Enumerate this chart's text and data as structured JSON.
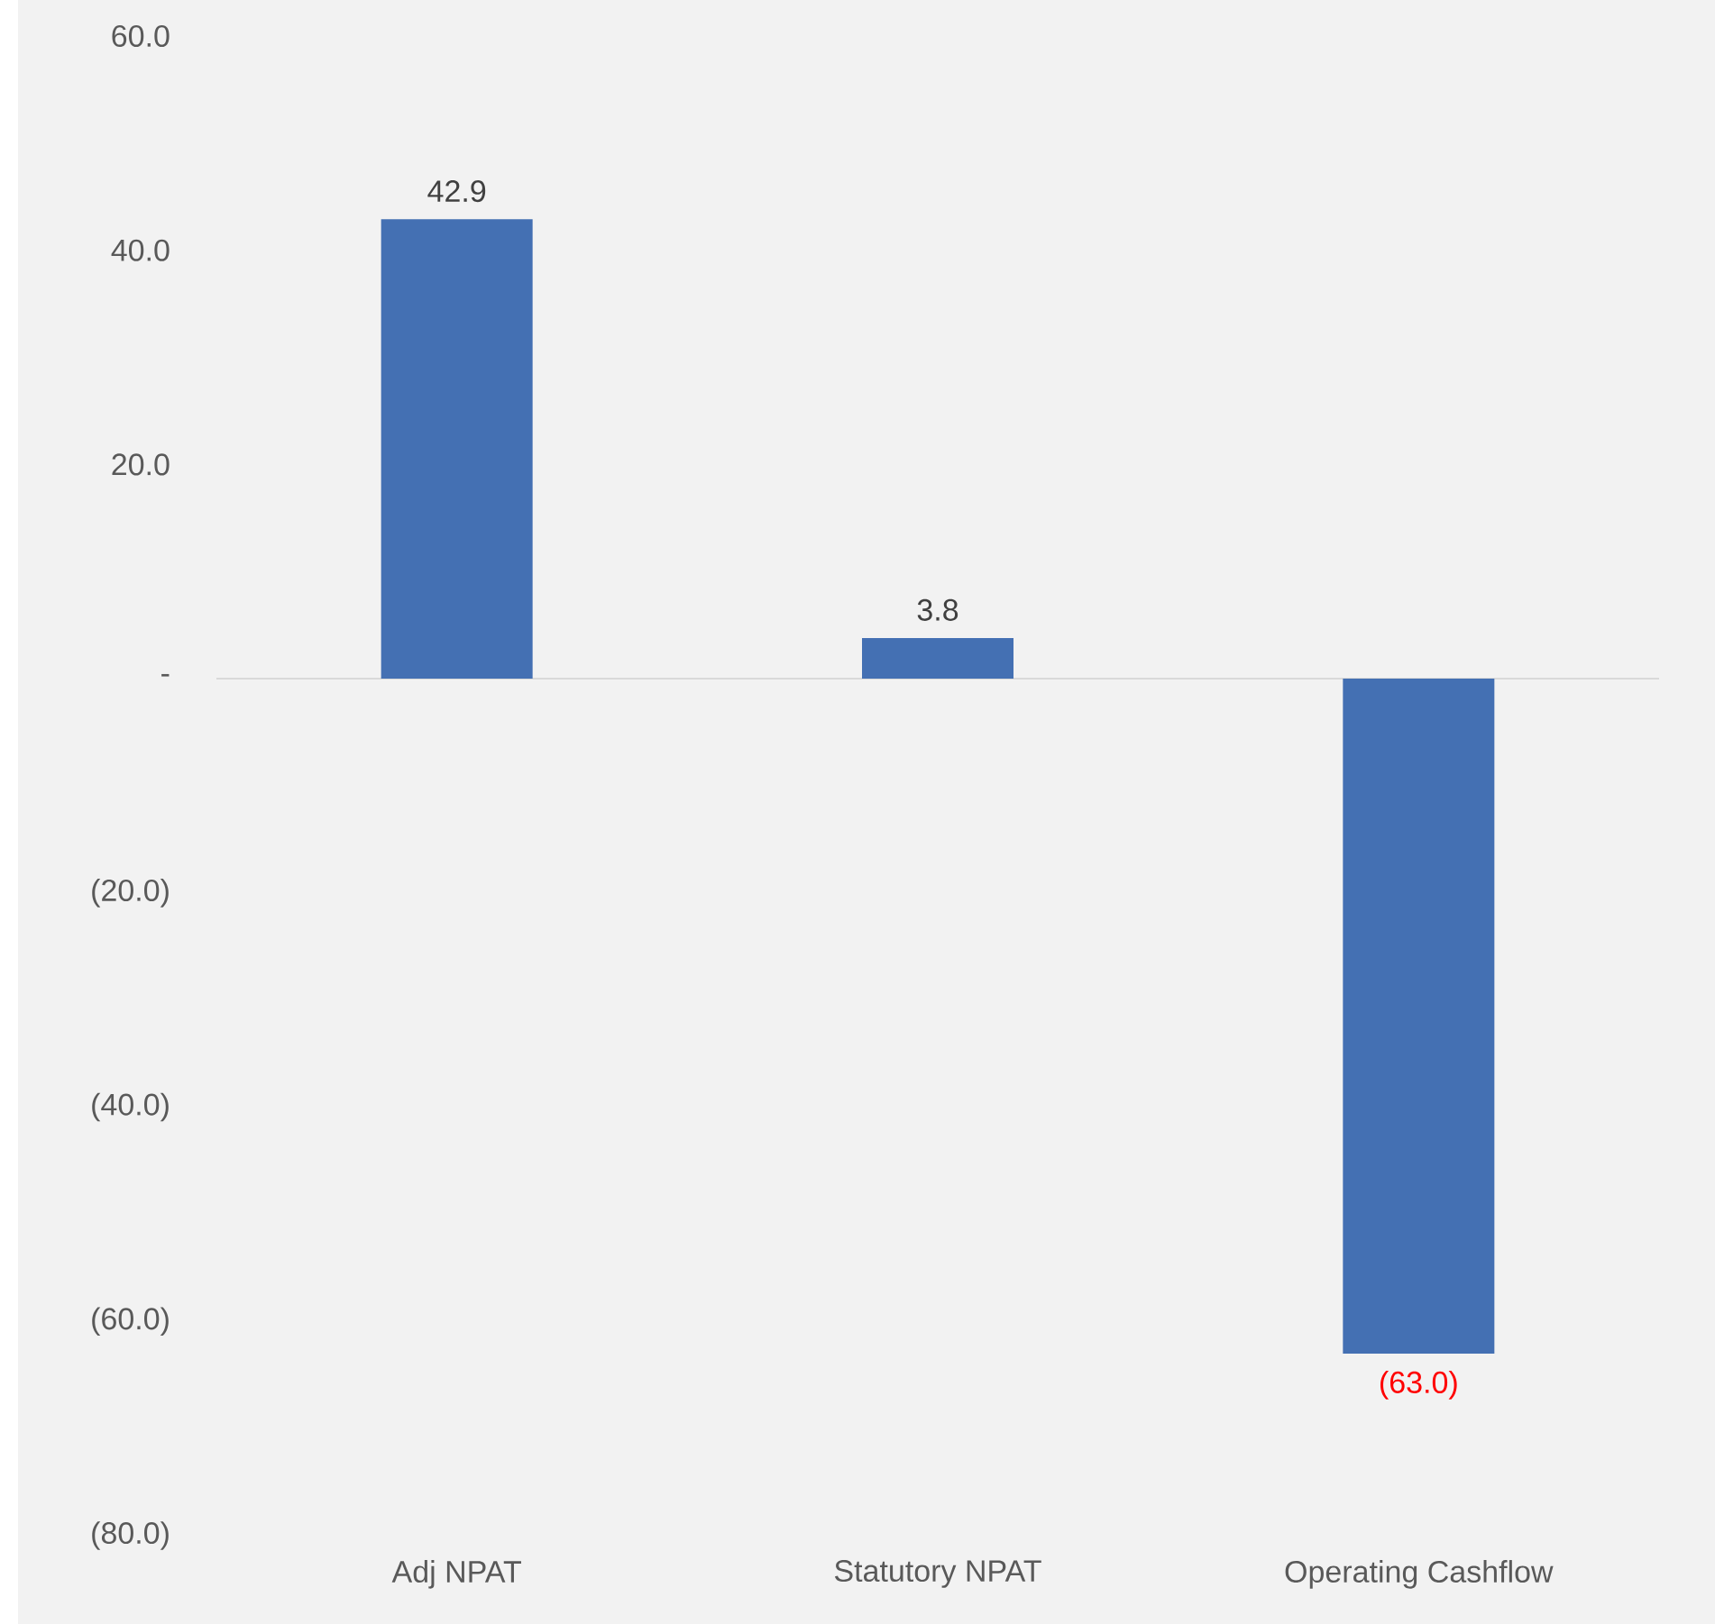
{
  "chart_data": {
    "type": "bar",
    "categories": [
      "Adj NPAT",
      "Statutory NPAT",
      "Operating Cashflow"
    ],
    "values": [
      42.9,
      3.8,
      -63.0
    ],
    "color": "#4470b3",
    "value_labels": [
      "42.9",
      "3.8",
      "(63.0)"
    ],
    "ylim": [
      -80,
      60
    ],
    "yticks": [
      {
        "value": 60,
        "label": "60.0"
      },
      {
        "value": 40,
        "label": "40.0"
      },
      {
        "value": 20,
        "label": "20.0"
      },
      {
        "value": 0,
        "label": "-"
      },
      {
        "value": -20,
        "label": "(20.0)"
      },
      {
        "value": -40,
        "label": "(40.0)"
      },
      {
        "value": -60,
        "label": "(60.0)"
      },
      {
        "value": -80,
        "label": "(80.0)"
      }
    ]
  }
}
